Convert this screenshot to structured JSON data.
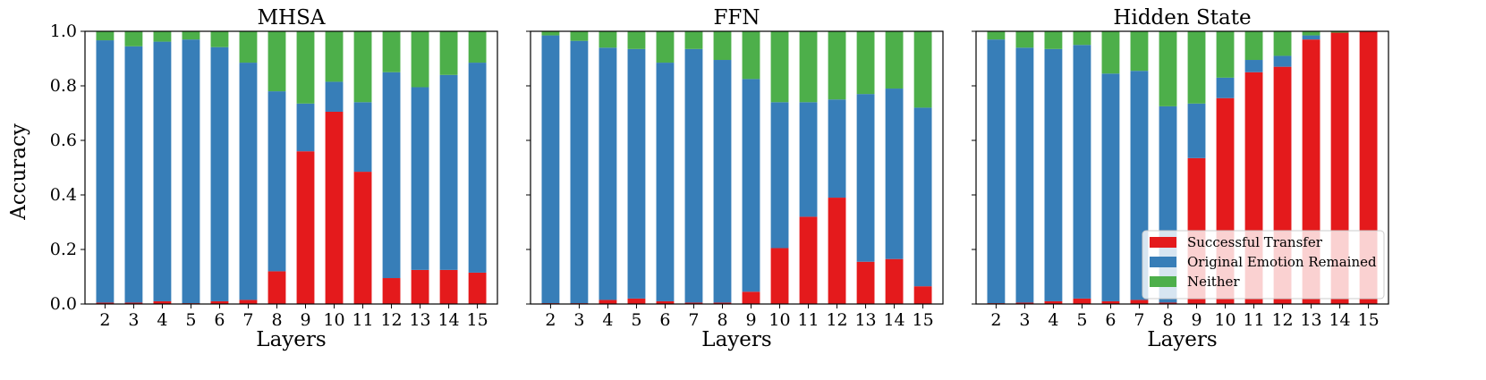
{
  "figure": {
    "ylabel": "Accuracy",
    "colors": {
      "success": "#e41a1c",
      "original": "#377eb8",
      "neither": "#4daf4a"
    },
    "legend": {
      "placement": "lower-right of third panel",
      "entries": [
        "Successful Transfer",
        "Original Emotion Remained",
        "Neither"
      ]
    }
  },
  "chart_data": [
    {
      "type": "bar",
      "stacked": true,
      "title": "MHSA",
      "xlabel": "Layers",
      "ylabel": "Accuracy",
      "ylim": [
        0,
        1
      ],
      "yticks": [
        "0.0",
        "0.2",
        "0.4",
        "0.6",
        "0.8",
        "1.0"
      ],
      "categories": [
        "2",
        "3",
        "4",
        "5",
        "6",
        "7",
        "8",
        "9",
        "10",
        "11",
        "12",
        "13",
        "14",
        "15"
      ],
      "series": [
        {
          "name": "Successful Transfer",
          "values": [
            0.005,
            0.005,
            0.01,
            0.003,
            0.01,
            0.015,
            0.12,
            0.56,
            0.705,
            0.485,
            0.095,
            0.125,
            0.125,
            0.115
          ]
        },
        {
          "name": "Original Emotion Remained",
          "values": [
            0.962,
            0.94,
            0.952,
            0.967,
            0.932,
            0.87,
            0.66,
            0.175,
            0.11,
            0.255,
            0.755,
            0.67,
            0.715,
            0.77
          ]
        },
        {
          "name": "Neither",
          "values": [
            0.033,
            0.055,
            0.038,
            0.03,
            0.058,
            0.115,
            0.22,
            0.265,
            0.185,
            0.26,
            0.15,
            0.205,
            0.16,
            0.115
          ]
        }
      ]
    },
    {
      "type": "bar",
      "stacked": true,
      "title": "FFN",
      "xlabel": "Layers",
      "ylabel": "Accuracy",
      "ylim": [
        0,
        1
      ],
      "yticks": [
        "0.0",
        "0.2",
        "0.4",
        "0.6",
        "0.8",
        "1.0"
      ],
      "categories": [
        "2",
        "3",
        "4",
        "5",
        "6",
        "7",
        "8",
        "9",
        "10",
        "11",
        "12",
        "13",
        "14",
        "15"
      ],
      "series": [
        {
          "name": "Successful Transfer",
          "values": [
            0.003,
            0.003,
            0.015,
            0.02,
            0.01,
            0.005,
            0.005,
            0.045,
            0.205,
            0.32,
            0.39,
            0.155,
            0.165,
            0.065
          ]
        },
        {
          "name": "Original Emotion Remained",
          "values": [
            0.982,
            0.962,
            0.925,
            0.915,
            0.875,
            0.93,
            0.89,
            0.78,
            0.535,
            0.42,
            0.36,
            0.615,
            0.625,
            0.655
          ]
        },
        {
          "name": "Neither",
          "values": [
            0.015,
            0.035,
            0.06,
            0.065,
            0.115,
            0.065,
            0.105,
            0.175,
            0.26,
            0.26,
            0.25,
            0.23,
            0.21,
            0.28
          ]
        }
      ]
    },
    {
      "type": "bar",
      "stacked": true,
      "title": "Hidden State",
      "xlabel": "Layers",
      "ylabel": "Accuracy",
      "ylim": [
        0,
        1
      ],
      "yticks": [
        "0.0",
        "0.2",
        "0.4",
        "0.6",
        "0.8",
        "1.0"
      ],
      "categories": [
        "2",
        "3",
        "4",
        "5",
        "6",
        "7",
        "8",
        "9",
        "10",
        "11",
        "12",
        "13",
        "14",
        "15"
      ],
      "series": [
        {
          "name": "Successful Transfer",
          "values": [
            0.003,
            0.005,
            0.01,
            0.02,
            0.01,
            0.015,
            0.005,
            0.535,
            0.755,
            0.85,
            0.87,
            0.97,
            0.995,
            1.0
          ]
        },
        {
          "name": "Original Emotion Remained",
          "values": [
            0.967,
            0.935,
            0.925,
            0.93,
            0.835,
            0.84,
            0.72,
            0.2,
            0.075,
            0.045,
            0.04,
            0.015,
            0.0,
            0.0
          ]
        },
        {
          "name": "Neither",
          "values": [
            0.03,
            0.06,
            0.065,
            0.05,
            0.155,
            0.145,
            0.275,
            0.265,
            0.17,
            0.105,
            0.09,
            0.015,
            0.005,
            0.0
          ]
        }
      ]
    }
  ]
}
